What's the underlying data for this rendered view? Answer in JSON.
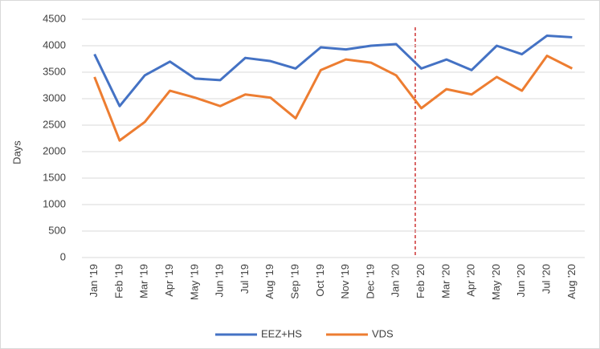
{
  "chart_data": {
    "type": "line",
    "y_label": "Days",
    "categories": [
      "Jan '19",
      "Feb '19",
      "Mar '19",
      "Apr '19",
      "May '19",
      "Jun '19",
      "Jul '19",
      "Aug '19",
      "Sep '19",
      "Oct '19",
      "Nov '19",
      "Dec '19",
      "Jan '20",
      "Feb '20",
      "Mar '20",
      "Apr '20",
      "May '20",
      "Jun '20",
      "Jul '20",
      "Aug '20"
    ],
    "series": [
      {
        "name": "EEZ+HS",
        "color": "#4472c4",
        "values": [
          3840,
          2860,
          3440,
          3700,
          3380,
          3350,
          3770,
          3710,
          3570,
          3970,
          3930,
          4000,
          4030,
          3570,
          3740,
          3540,
          4000,
          3840,
          4190,
          4160
        ]
      },
      {
        "name": "VDS",
        "color": "#ed7d31",
        "values": [
          3410,
          2210,
          2560,
          3150,
          3020,
          2860,
          3080,
          3020,
          2630,
          3540,
          3740,
          3680,
          3440,
          2820,
          3180,
          3080,
          3410,
          3150,
          3810,
          3570
        ]
      }
    ],
    "ylim": [
      0,
      4500
    ],
    "yticks": [
      0,
      500,
      1000,
      1500,
      2000,
      2500,
      3000,
      3500,
      4000,
      4500
    ],
    "grid": true,
    "legend": "bottom"
  }
}
